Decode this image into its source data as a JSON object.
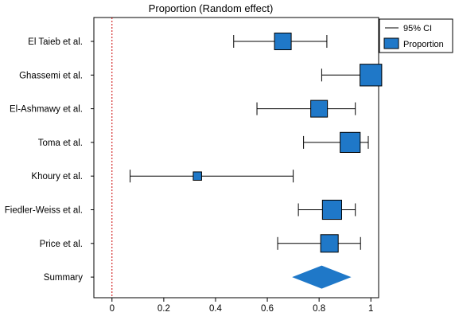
{
  "chart_data": {
    "type": "forest",
    "title": "Proportion (Random effect)",
    "xlim": [
      -0.07,
      1.03
    ],
    "x_ticks": [
      0,
      0.2,
      0.4,
      0.6,
      0.8,
      1
    ],
    "x_tick_labels": [
      "0",
      "0.2",
      "0.4",
      "0.6",
      "0.8",
      "1"
    ],
    "reference_line": 0,
    "studies": [
      {
        "label": "El Taieb et al.",
        "estimate": 0.66,
        "ci_low": 0.47,
        "ci_high": 0.83,
        "weight": 1.0
      },
      {
        "label": "Ghassemi et al.",
        "estimate": 1.0,
        "ci_low": 0.81,
        "ci_high": 1.0,
        "weight": 1.3
      },
      {
        "label": "El-Ashmawy et al.",
        "estimate": 0.8,
        "ci_low": 0.56,
        "ci_high": 0.94,
        "weight": 1.0
      },
      {
        "label": "Toma et al.",
        "estimate": 0.92,
        "ci_low": 0.74,
        "ci_high": 0.99,
        "weight": 1.2
      },
      {
        "label": "Khoury et al.",
        "estimate": 0.33,
        "ci_low": 0.07,
        "ci_high": 0.7,
        "weight": 0.5
      },
      {
        "label": "Fiedler-Weiss et al.",
        "estimate": 0.85,
        "ci_low": 0.72,
        "ci_high": 0.94,
        "weight": 1.15
      },
      {
        "label": "Price et al.",
        "estimate": 0.84,
        "ci_low": 0.64,
        "ci_high": 0.96,
        "weight": 1.05
      }
    ],
    "summary": {
      "label": "Summary",
      "estimate": 0.81,
      "ci_low": 0.7,
      "ci_high": 0.92
    },
    "legend": {
      "position": "top-right",
      "ci_label": "95% CI",
      "point_label": "Proportion"
    },
    "colors": {
      "marker": "#1f78c8",
      "marker_stroke": "#000000",
      "reference": "#cc0000",
      "axis": "#000000"
    }
  }
}
